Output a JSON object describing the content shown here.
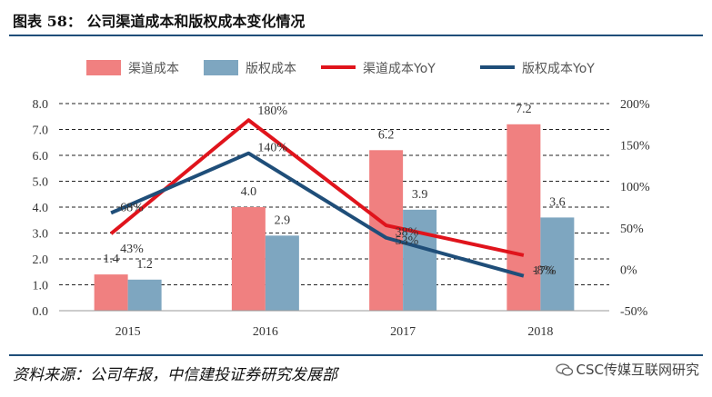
{
  "title": "图表 58：  公司渠道成本和版权成本变化情况",
  "source": "资料来源：公司年报，中信建投证券研究发展部",
  "watermark": "CSC传媒互联网研究",
  "colors": {
    "channel_bar": "#f08080",
    "copyright_bar": "#7ea6c0",
    "channel_line": "#e0141c",
    "copyright_line": "#1f4e79",
    "rule": "#1f4e79"
  },
  "chart_data": {
    "type": "bar+line",
    "categories": [
      "2015",
      "2016",
      "2017",
      "2018"
    ],
    "bar_series": [
      {
        "name": "渠道成本",
        "values": [
          1.4,
          4.0,
          6.2,
          7.2
        ],
        "labels": [
          "1.4",
          "4.0",
          "6.2",
          "7.2"
        ]
      },
      {
        "name": "版权成本",
        "values": [
          1.2,
          2.9,
          3.9,
          3.6
        ],
        "labels": [
          "1.2",
          "2.9",
          "3.9",
          "3.6"
        ]
      }
    ],
    "line_series": [
      {
        "name": "渠道成本YoY",
        "values": [
          43,
          180,
          53,
          17
        ],
        "labels": [
          "43%",
          "180%",
          "53%",
          "17%"
        ]
      },
      {
        "name": "版权成本YoY",
        "values": [
          68,
          140,
          38,
          -8
        ],
        "labels": [
          "68%",
          "140%",
          "38%",
          "-8%"
        ]
      }
    ],
    "y_left": {
      "min": 0,
      "max": 8,
      "ticks": [
        "0.0",
        "1.0",
        "2.0",
        "3.0",
        "4.0",
        "5.0",
        "6.0",
        "7.0",
        "8.0"
      ]
    },
    "y_right": {
      "min": -50,
      "max": 200,
      "ticks": [
        "-50%",
        "0%",
        "50%",
        "100%",
        "150%",
        "200%"
      ]
    },
    "grid": "dashed",
    "legend_position": "top"
  }
}
